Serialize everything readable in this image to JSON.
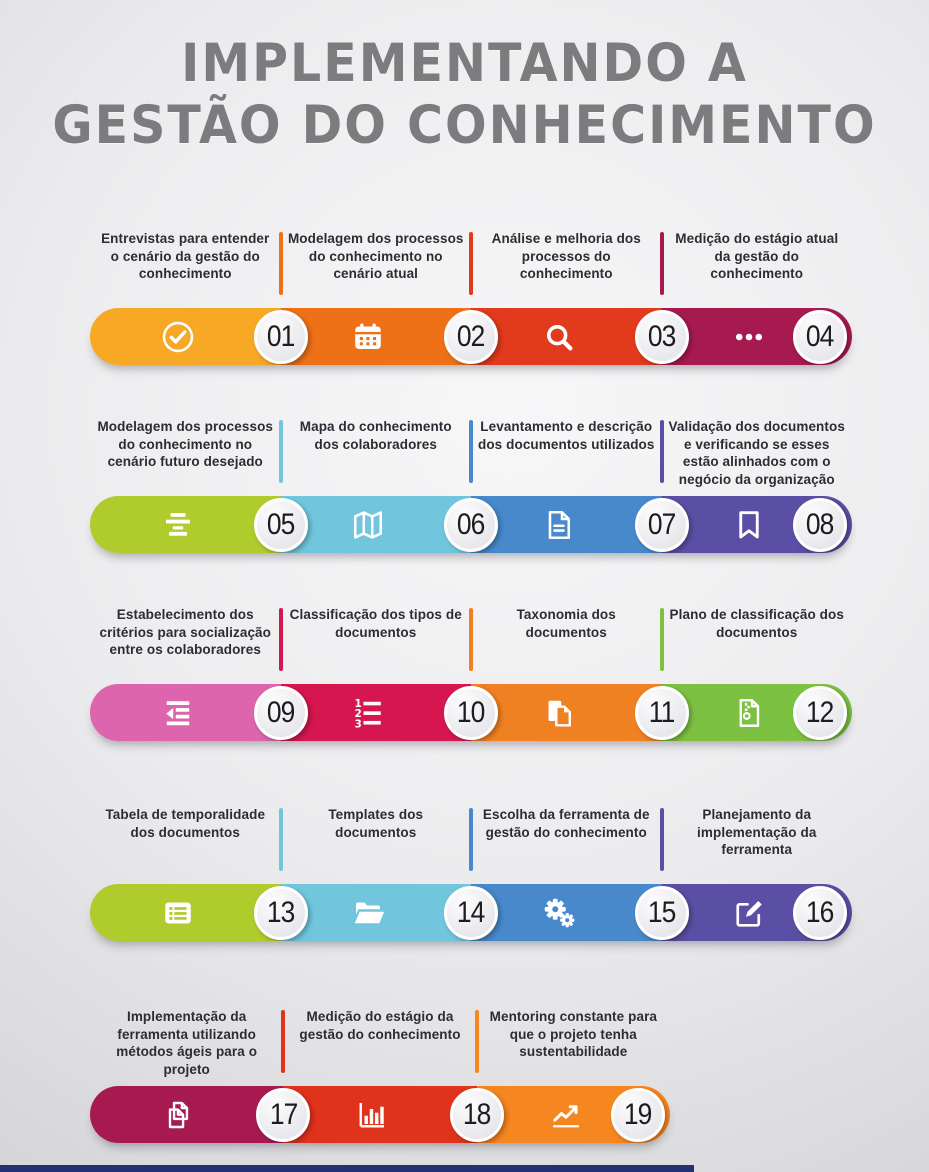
{
  "title": {
    "line1": "IMPLEMENTANDO A",
    "line2": "GESTÃO DO CONHECIMENTO"
  },
  "rows": [
    {
      "steps": [
        {
          "number": "01",
          "label": "Entrevistas para entender o cenário da gestão do conhecimento",
          "icon": "check-circle",
          "color": "#F7A824"
        },
        {
          "number": "02",
          "label": "Modelagem dos processos do conhecimento no cenário atual",
          "icon": "calendar",
          "color": "#EE7118"
        },
        {
          "number": "03",
          "label": "Análise e melhoria dos processos do conhecimento",
          "icon": "search",
          "color": "#E23A1C"
        },
        {
          "number": "04",
          "label": "Medição do estágio atual da gestão do conhecimento",
          "icon": "ellipsis",
          "color": "#A61A50"
        }
      ]
    },
    {
      "steps": [
        {
          "number": "05",
          "label": "Modelagem dos processos do conhecimento no cenário futuro desejado",
          "icon": "align-bars",
          "color": "#AFCB2C"
        },
        {
          "number": "06",
          "label": "Mapa do conhecimento dos colaboradores",
          "icon": "map",
          "color": "#71C6DE"
        },
        {
          "number": "07",
          "label": "Levantamento e descrição dos documentos utilizados",
          "icon": "file-lines",
          "color": "#4789CB"
        },
        {
          "number": "08",
          "label": "Validação dos documentos e verificando se esses estão alinhados com o negócio da organização",
          "icon": "bookmark",
          "color": "#5A4FA5"
        }
      ]
    },
    {
      "steps": [
        {
          "number": "09",
          "label": "Estabelecimento dos critérios para socialização entre os colaboradores",
          "icon": "outdent",
          "color": "#DD65AD"
        },
        {
          "number": "10",
          "label": "Classificação dos tipos de documentos",
          "icon": "list-numbered",
          "color": "#D6164F"
        },
        {
          "number": "11",
          "label": "Taxonomia dos documentos",
          "icon": "copy-filled",
          "color": "#F08122"
        },
        {
          "number": "12",
          "label": "Plano de classificação dos documentos",
          "icon": "file-zip",
          "color": "#7DC142"
        }
      ]
    },
    {
      "steps": [
        {
          "number": "13",
          "label": "Tabela de temporalidade dos documentos",
          "icon": "newspaper",
          "color": "#AFCB2C"
        },
        {
          "number": "14",
          "label": "Templates dos documentos",
          "icon": "folder-open",
          "color": "#71C6DE"
        },
        {
          "number": "15",
          "label": "Escolha da ferramenta de gestão do conhecimento",
          "icon": "gears",
          "color": "#4789CB"
        },
        {
          "number": "16",
          "label": "Planejamento da implementação da ferramenta",
          "icon": "edit",
          "color": "#5A4FA5"
        }
      ]
    },
    {
      "steps": [
        {
          "number": "17",
          "label": "Implementação da ferramenta utilizando métodos ágeis para o projeto",
          "icon": "copy-outline",
          "color": "#A61A50"
        },
        {
          "number": "18",
          "label": "Medição do estágio da gestão do conhecimento",
          "icon": "bar-chart",
          "color": "#E0331B"
        },
        {
          "number": "19",
          "label": "Mentoring constante para que o projeto tenha sustentabilidade",
          "icon": "line-chart",
          "color": "#F6861F"
        }
      ]
    }
  ],
  "footer": {
    "strip_color": "#233076"
  }
}
